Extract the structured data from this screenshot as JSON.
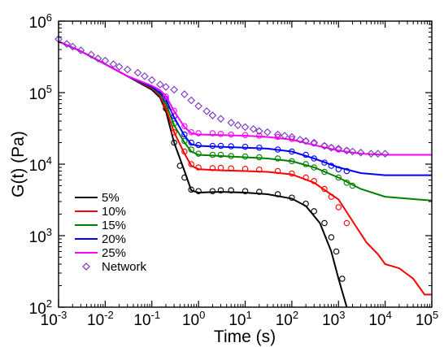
{
  "chart_data": {
    "type": "line",
    "xlabel": "Time (s)",
    "ylabel": "G(t) (Pa)",
    "xscale": "log",
    "yscale": "log",
    "xlim": [
      0.001,
      100000
    ],
    "ylim": [
      100,
      1000000
    ],
    "x_ticks": [
      {
        "base": "10",
        "exp": "-3"
      },
      {
        "base": "10",
        "exp": "-2"
      },
      {
        "base": "10",
        "exp": "-1"
      },
      {
        "base": "10",
        "exp": "0"
      },
      {
        "base": "10",
        "exp": "1"
      },
      {
        "base": "10",
        "exp": "2"
      },
      {
        "base": "10",
        "exp": "3"
      },
      {
        "base": "10",
        "exp": "4"
      },
      {
        "base": "10",
        "exp": "5"
      }
    ],
    "y_ticks": [
      {
        "base": "10",
        "exp": "2"
      },
      {
        "base": "10",
        "exp": "3"
      },
      {
        "base": "10",
        "exp": "4"
      },
      {
        "base": "10",
        "exp": "5"
      },
      {
        "base": "10",
        "exp": "6"
      }
    ],
    "legend_position": "lower-left",
    "series": [
      {
        "name": "5%",
        "color": "#000000",
        "style": "line",
        "x": [
          0.001,
          0.003,
          0.01,
          0.03,
          0.1,
          0.15,
          0.2,
          0.3,
          0.5,
          0.7,
          1,
          3,
          10,
          30,
          100,
          200,
          400,
          700,
          1000,
          1500
        ],
        "y": [
          520000,
          380000,
          250000,
          170000,
          110000,
          85000,
          55000,
          20000,
          8000,
          4300,
          4000,
          4100,
          4000,
          3800,
          3300,
          2600,
          1500,
          600,
          250,
          100
        ]
      },
      {
        "name": "5% data",
        "color": "#000000",
        "style": "circles",
        "x": [
          0.15,
          0.2,
          0.3,
          0.4,
          0.5,
          0.7,
          1,
          2,
          3,
          5,
          10,
          20,
          50,
          100,
          200,
          300,
          500,
          700,
          900,
          1200
        ],
        "y": [
          95000,
          60000,
          20000,
          9500,
          6500,
          4400,
          4200,
          4200,
          4300,
          4300,
          4200,
          4100,
          3800,
          3400,
          2800,
          2200,
          1500,
          950,
          600,
          250
        ]
      },
      {
        "name": "10%",
        "color": "#ff0000",
        "style": "line",
        "x": [
          0.001,
          0.003,
          0.01,
          0.03,
          0.1,
          0.15,
          0.2,
          0.3,
          0.5,
          0.7,
          1,
          3,
          10,
          30,
          100,
          300,
          1000,
          2000,
          4000,
          7000,
          10000,
          20000,
          40000,
          70000,
          100000
        ],
        "y": [
          520000,
          380000,
          250000,
          170000,
          115000,
          90000,
          60000,
          28000,
          14000,
          9500,
          8500,
          8200,
          8000,
          7800,
          7200,
          5500,
          3200,
          1600,
          800,
          550,
          400,
          350,
          250,
          150,
          150
        ]
      },
      {
        "name": "10% data",
        "color": "#ff0000",
        "style": "circles",
        "x": [
          0.2,
          0.3,
          0.5,
          0.7,
          1,
          2,
          3,
          5,
          10,
          20,
          50,
          100,
          200,
          300,
          500,
          700,
          1000,
          1500
        ],
        "y": [
          65000,
          28000,
          15000,
          10000,
          9000,
          8800,
          8900,
          8700,
          8600,
          8400,
          8000,
          7400,
          6500,
          5800,
          4500,
          3500,
          2500,
          1500
        ]
      },
      {
        "name": "15%",
        "color": "#008000",
        "style": "line",
        "x": [
          0.001,
          0.003,
          0.01,
          0.03,
          0.1,
          0.15,
          0.2,
          0.3,
          0.5,
          0.7,
          1,
          3,
          10,
          30,
          100,
          300,
          1000,
          3000,
          10000,
          30000,
          100000
        ],
        "y": [
          520000,
          380000,
          250000,
          170000,
          118000,
          95000,
          70000,
          35000,
          20000,
          15000,
          13500,
          13000,
          12500,
          12000,
          11000,
          9000,
          6500,
          4500,
          3500,
          3300,
          3100
        ]
      },
      {
        "name": "15% data",
        "color": "#008000",
        "style": "circles",
        "x": [
          0.2,
          0.3,
          0.5,
          0.7,
          1,
          2,
          3,
          5,
          10,
          20,
          50,
          100,
          200,
          300,
          500,
          1000,
          1500,
          2000
        ],
        "y": [
          75000,
          37000,
          21000,
          16000,
          14000,
          13500,
          13500,
          13000,
          12800,
          12500,
          12000,
          11000,
          10000,
          9000,
          7800,
          6500,
          5500,
          5000
        ]
      },
      {
        "name": "20%",
        "color": "#0000ff",
        "style": "line",
        "x": [
          0.001,
          0.003,
          0.01,
          0.03,
          0.1,
          0.15,
          0.2,
          0.3,
          0.5,
          0.7,
          1,
          3,
          10,
          30,
          100,
          300,
          1000,
          3000,
          10000,
          30000,
          100000
        ],
        "y": [
          520000,
          380000,
          250000,
          170000,
          120000,
          100000,
          80000,
          45000,
          25000,
          19000,
          18000,
          17500,
          17000,
          16500,
          15000,
          12000,
          9000,
          7500,
          7000,
          7000,
          7000
        ]
      },
      {
        "name": "20% data",
        "color": "#0000ff",
        "style": "circles",
        "x": [
          0.2,
          0.3,
          0.5,
          0.7,
          1,
          2,
          3,
          5,
          10,
          20,
          50,
          100,
          200,
          300,
          500,
          700,
          1000,
          1500
        ],
        "y": [
          82000,
          47000,
          26000,
          20000,
          18500,
          18000,
          18000,
          17800,
          17500,
          17000,
          16000,
          15000,
          13500,
          12000,
          10500,
          9500,
          8500,
          8000
        ]
      },
      {
        "name": "25%",
        "color": "#ff00ff",
        "style": "line",
        "x": [
          0.001,
          0.003,
          0.01,
          0.03,
          0.1,
          0.15,
          0.2,
          0.3,
          0.5,
          0.7,
          1,
          3,
          10,
          30,
          100,
          300,
          1000,
          3000,
          10000,
          30000,
          100000
        ],
        "y": [
          520000,
          380000,
          250000,
          170000,
          125000,
          108000,
          90000,
          55000,
          33000,
          27000,
          26000,
          25500,
          25000,
          24000,
          22000,
          18500,
          15500,
          14000,
          13500,
          13500,
          13500
        ]
      },
      {
        "name": "25% data",
        "color": "#ff00ff",
        "style": "circles",
        "x": [
          0.2,
          0.3,
          0.5,
          0.7,
          1,
          2,
          3,
          5,
          10,
          20,
          50,
          100,
          200,
          300,
          500,
          700,
          1000,
          1500
        ],
        "y": [
          88000,
          56000,
          34000,
          28000,
          27000,
          27000,
          26500,
          26000,
          25500,
          25000,
          24000,
          22500,
          21000,
          19500,
          18000,
          17000,
          16000,
          15500
        ]
      },
      {
        "name": "Network",
        "color": "#7b2fbe",
        "style": "diamonds",
        "x": [
          0.001,
          0.0015,
          0.002,
          0.003,
          0.005,
          0.007,
          0.01,
          0.015,
          0.02,
          0.03,
          0.05,
          0.07,
          0.1,
          0.15,
          0.2,
          0.3,
          0.5,
          0.7,
          1,
          1.5,
          2,
          3,
          5,
          7,
          10,
          15,
          20,
          30,
          50,
          70,
          100,
          150,
          200,
          300,
          500,
          700,
          1000,
          1500,
          2000,
          3000,
          5000,
          7000,
          10000
        ],
        "y": [
          560000,
          480000,
          440000,
          390000,
          340000,
          300000,
          280000,
          250000,
          230000,
          210000,
          190000,
          170000,
          150000,
          130000,
          120000,
          110000,
          95000,
          78000,
          65000,
          55000,
          48000,
          43000,
          38000,
          35000,
          33000,
          31000,
          29000,
          28000,
          26000,
          25000,
          24000,
          22000,
          21000,
          20000,
          18000,
          17000,
          16500,
          15500,
          15000,
          14500,
          14000,
          14000,
          14000
        ]
      }
    ],
    "legend": [
      {
        "label": "5%",
        "color": "#000000",
        "marker": "line"
      },
      {
        "label": "10%",
        "color": "#ff0000",
        "marker": "line"
      },
      {
        "label": "15%",
        "color": "#008000",
        "marker": "line"
      },
      {
        "label": "20%",
        "color": "#0000ff",
        "marker": "line"
      },
      {
        "label": "25%",
        "color": "#ff00ff",
        "marker": "line"
      },
      {
        "label": "Network",
        "color": "#7b2fbe",
        "marker": "diamond"
      }
    ]
  }
}
